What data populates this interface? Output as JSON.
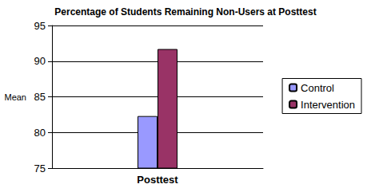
{
  "chart_data": {
    "type": "bar",
    "title": "Percentage of Students Remaining Non-Users at Posttest",
    "y_label": "Mean",
    "categories": [
      "Posttest"
    ],
    "series": [
      {
        "name": "Control",
        "color": "#9999ff",
        "values": [
          82.3
        ]
      },
      {
        "name": "Intervention",
        "color": "#993366",
        "values": [
          91.7
        ]
      }
    ],
    "ylim": [
      75,
      95
    ],
    "yticks": [
      75,
      80,
      85,
      90,
      95
    ],
    "grid": true,
    "legend": "right"
  }
}
